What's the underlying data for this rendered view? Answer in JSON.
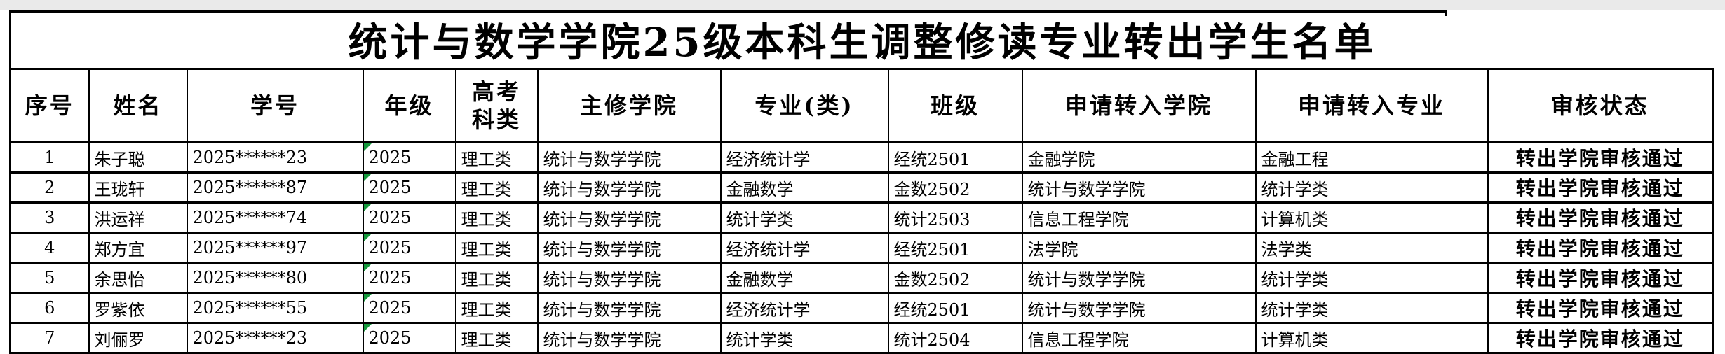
{
  "title": "统计与数学学院25级本科生调整修读专业转出学生名单",
  "colors": {
    "page_background": "#ffffff",
    "top_strip": "#eaeaea",
    "grid_border": "#000000",
    "cell_background": "#ffffff",
    "text": "#000000",
    "error_indicator_green": "#15993c"
  },
  "table": {
    "headers": [
      "序号",
      "姓名",
      "学号",
      "年级",
      "高考\n科类",
      "主修学院",
      "专业(类)",
      "班级",
      "申请转入学院",
      "申请转入专业",
      "审核状态"
    ],
    "grade_column_index": 3,
    "rows": [
      [
        "1",
        "朱子聪",
        "2025******23",
        "2025",
        "理工类",
        "统计与数学学院",
        "经济统计学",
        "经统2501",
        "金融学院",
        "金融工程",
        "转出学院审核通过"
      ],
      [
        "2",
        "王珑轩",
        "2025******87",
        "2025",
        "理工类",
        "统计与数学学院",
        "金融数学",
        "金数2502",
        "统计与数学学院",
        "统计学类",
        "转出学院审核通过"
      ],
      [
        "3",
        "洪运祥",
        "2025******74",
        "2025",
        "理工类",
        "统计与数学学院",
        "统计学类",
        "统计2503",
        "信息工程学院",
        "计算机类",
        "转出学院审核通过"
      ],
      [
        "4",
        "郑方宜",
        "2025******97",
        "2025",
        "理工类",
        "统计与数学学院",
        "经济统计学",
        "经统2501",
        "法学院",
        "法学类",
        "转出学院审核通过"
      ],
      [
        "5",
        "余思怡",
        "2025******80",
        "2025",
        "理工类",
        "统计与数学学院",
        "金融数学",
        "金数2502",
        "统计与数学学院",
        "统计学类",
        "转出学院审核通过"
      ],
      [
        "6",
        "罗紫依",
        "2025******55",
        "2025",
        "理工类",
        "统计与数学学院",
        "经济统计学",
        "经统2501",
        "统计与数学学院",
        "统计学类",
        "转出学院审核通过"
      ],
      [
        "7",
        "刘俪罗",
        "2025******23",
        "2025",
        "理工类",
        "统计与数学学院",
        "统计学类",
        "统计2504",
        "信息工程学院",
        "计算机类",
        "转出学院审核通过"
      ]
    ]
  }
}
